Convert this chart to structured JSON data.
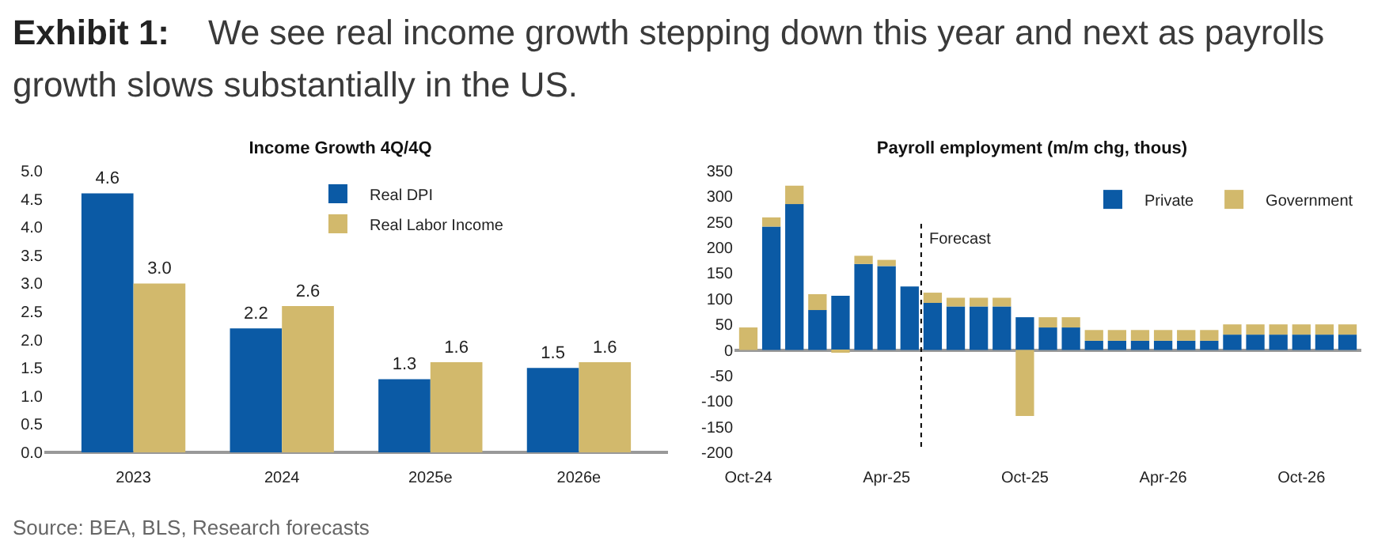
{
  "chart_data": [
    {
      "type": "bar",
      "title": "Income Growth 4Q/4Q",
      "annotations": [
        "Exhibit 1:    We see real income growth stepping down this year and next as payrolls growth slows substantially in the US.",
        "Source: BEA, BLS, Research forecasts"
      ],
      "categories": [
        "2023",
        "2024",
        "2025e",
        "2026e"
      ],
      "series": [
        {
          "name": "Real DPI",
          "color": "#0b5aa5",
          "values": [
            4.6,
            2.2,
            1.3,
            1.5
          ],
          "value_labels": [
            "4.6",
            "2.2",
            "1.3",
            "1.5"
          ]
        },
        {
          "name": "Real Labor Income",
          "color": "#d2b96c",
          "values": [
            3.0,
            2.6,
            1.6,
            1.6
          ],
          "value_labels": [
            "3.0",
            "2.6",
            "1.6",
            "1.6"
          ]
        }
      ],
      "ylim": [
        0,
        5
      ],
      "yticks": [
        {
          "value": 0,
          "label": "0.0"
        },
        0.5,
        {
          "value": 1,
          "label": "1.0"
        },
        1.5,
        {
          "value": 2,
          "label": "2.0"
        },
        2.5,
        {
          "value": 3,
          "label": "3.0"
        },
        3.5,
        {
          "value": 4,
          "label": "4.0"
        },
        4.5,
        {
          "value": 5,
          "label": "5.0"
        }
      ],
      "grid": false,
      "legend": "top"
    },
    {
      "type": "bar",
      "title": "Payroll employment (m/m chg, thous)",
      "stacked": true,
      "categories": [
        "Oct-24",
        null,
        null,
        null,
        null,
        null,
        "Apr-25",
        null,
        null,
        null,
        null,
        null,
        "Oct-25",
        null,
        null,
        null,
        null,
        null,
        "Apr-26",
        null,
        null,
        null,
        null,
        null,
        "Oct-26",
        null,
        null
      ],
      "series": [
        {
          "name": "Private",
          "color": "#0b5aa5",
          "values": [
            0,
            241,
            285,
            78,
            106,
            168,
            164,
            124,
            92,
            85,
            85,
            85,
            64,
            44,
            44,
            18,
            18,
            18,
            18,
            18,
            18,
            30,
            30,
            30,
            30,
            30,
            30
          ]
        },
        {
          "name": "Government",
          "color": "#d2b96c",
          "values": [
            44,
            18,
            36,
            31,
            -5,
            16,
            12,
            0,
            20,
            17,
            17,
            17,
            -129,
            20,
            20,
            21,
            21,
            21,
            21,
            21,
            21,
            20,
            20,
            20,
            20,
            20,
            20
          ]
        }
      ],
      "ylim": [
        -200,
        350
      ],
      "yticks": [
        -200,
        -150,
        -100,
        -50,
        0,
        50,
        100,
        150,
        200,
        250,
        300,
        350
      ],
      "annotations": [
        "Forecast"
      ],
      "grid": false,
      "legend": "top right"
    }
  ]
}
